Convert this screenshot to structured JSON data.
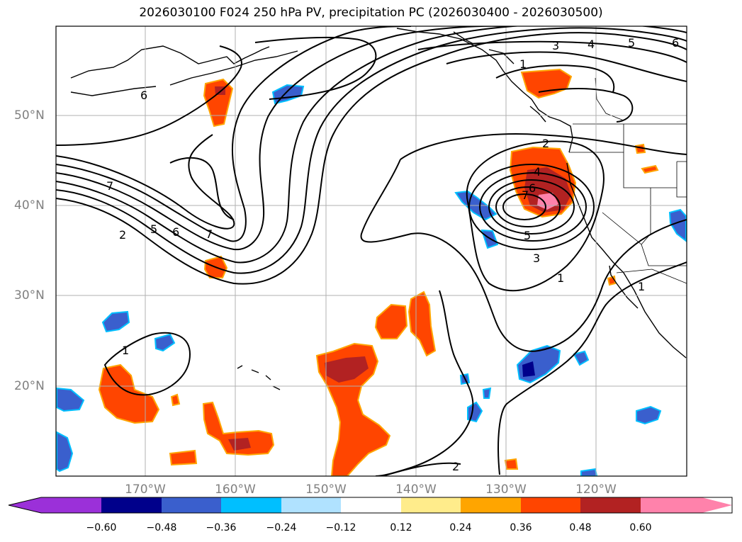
{
  "title": "2026030100 F024 250 hPa PV, precipitation PC (2026030400 - 2026030500)",
  "latitude_labels": [
    "50°N",
    "40°N",
    "30°N",
    "20°N"
  ],
  "longitude_labels": [
    "170°W",
    "160°W",
    "150°W",
    "140°W",
    "130°W",
    "120°W"
  ],
  "colorbar": {
    "tick_labels": [
      "−0.60",
      "−0.48",
      "−0.36",
      "−0.24",
      "−0.12",
      "0.12",
      "0.24",
      "0.36",
      "0.48",
      "0.60"
    ],
    "colors": [
      "#9b30d9",
      "#00008b",
      "#3a5fcd",
      "#00bfff",
      "#b0e2ff",
      "#ffffff",
      "#ffec8b",
      "#ffa500",
      "#ff4500",
      "#b22222",
      "#ff82ab"
    ]
  },
  "contour_labels": [
    "1",
    "2",
    "3",
    "4",
    "5",
    "6",
    "7",
    "6",
    "7",
    "5",
    "6",
    "7",
    "2",
    "1",
    "3",
    "4",
    "5",
    "6",
    "2",
    "4",
    "6",
    "7",
    "5",
    "3",
    "1",
    "1",
    "1",
    "2"
  ],
  "fill_colors": {
    "orange": "#ff4500",
    "darkred": "#b22222",
    "pink": "#ff82ab",
    "yellow": "#ffec8b",
    "amber": "#ffa500",
    "blue": "#3a5fcd",
    "navy": "#00008b",
    "sky": "#00bfff"
  }
}
